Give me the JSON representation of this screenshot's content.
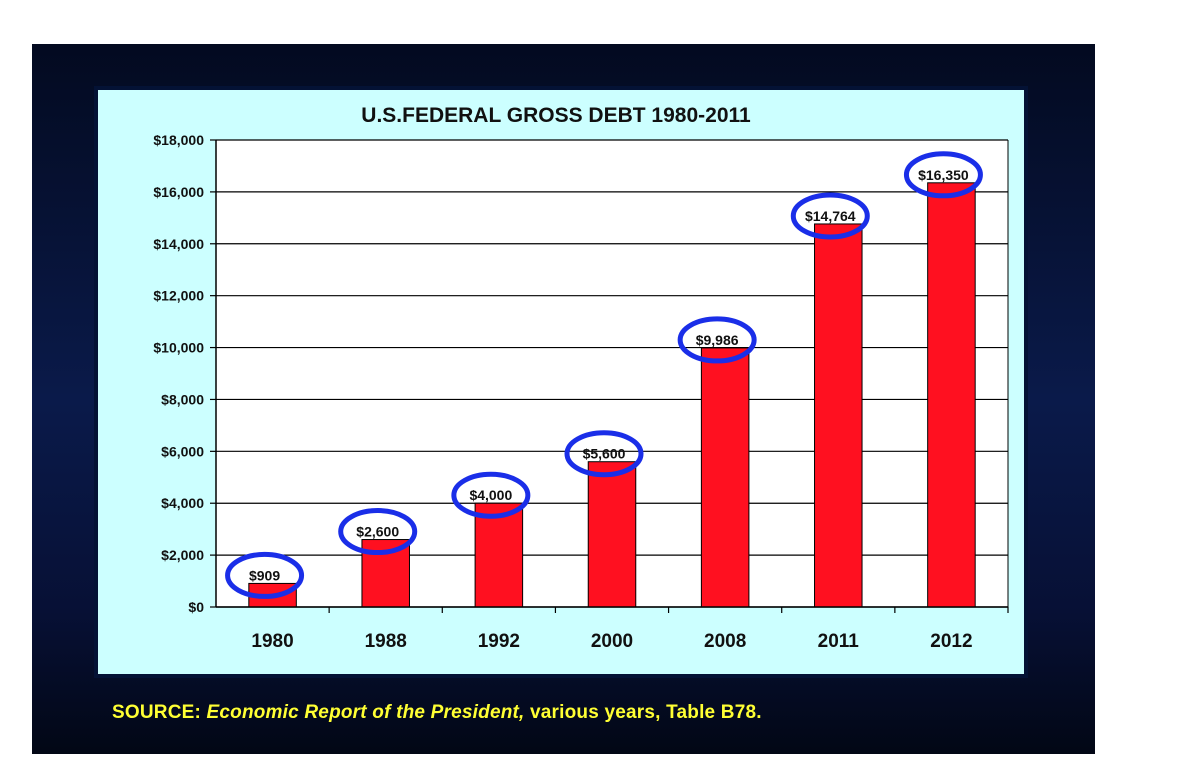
{
  "chart_data": {
    "type": "bar",
    "title": "U.S.FEDERAL GROSS DEBT 1980-2011",
    "categories": [
      "1980",
      "1988",
      "1992",
      "2000",
      "2008",
      "2011",
      "2012"
    ],
    "values": [
      909,
      2600,
      4000,
      5600,
      9986,
      14764,
      16350
    ],
    "data_labels": [
      "$909",
      "$2,600",
      "$4,000",
      "$5,600",
      "$9,986",
      "$14,764",
      "$16,350"
    ],
    "yticks": [
      "$0",
      "$2,000",
      "$4,000",
      "$6,000",
      "$8,000",
      "$10,000",
      "$12,000",
      "$14,000",
      "$16,000",
      "$18,000"
    ],
    "ylim": [
      0,
      18000
    ],
    "xlabel": "",
    "ylabel": "",
    "grid": true,
    "legend": "none",
    "bar_color": "#ff1020",
    "label_circle_color": "#1a2ee8"
  },
  "source": {
    "prefix": "SOURCE:",
    "title": "Economic Report of the President,",
    "suffix": "various years, Table B78."
  }
}
